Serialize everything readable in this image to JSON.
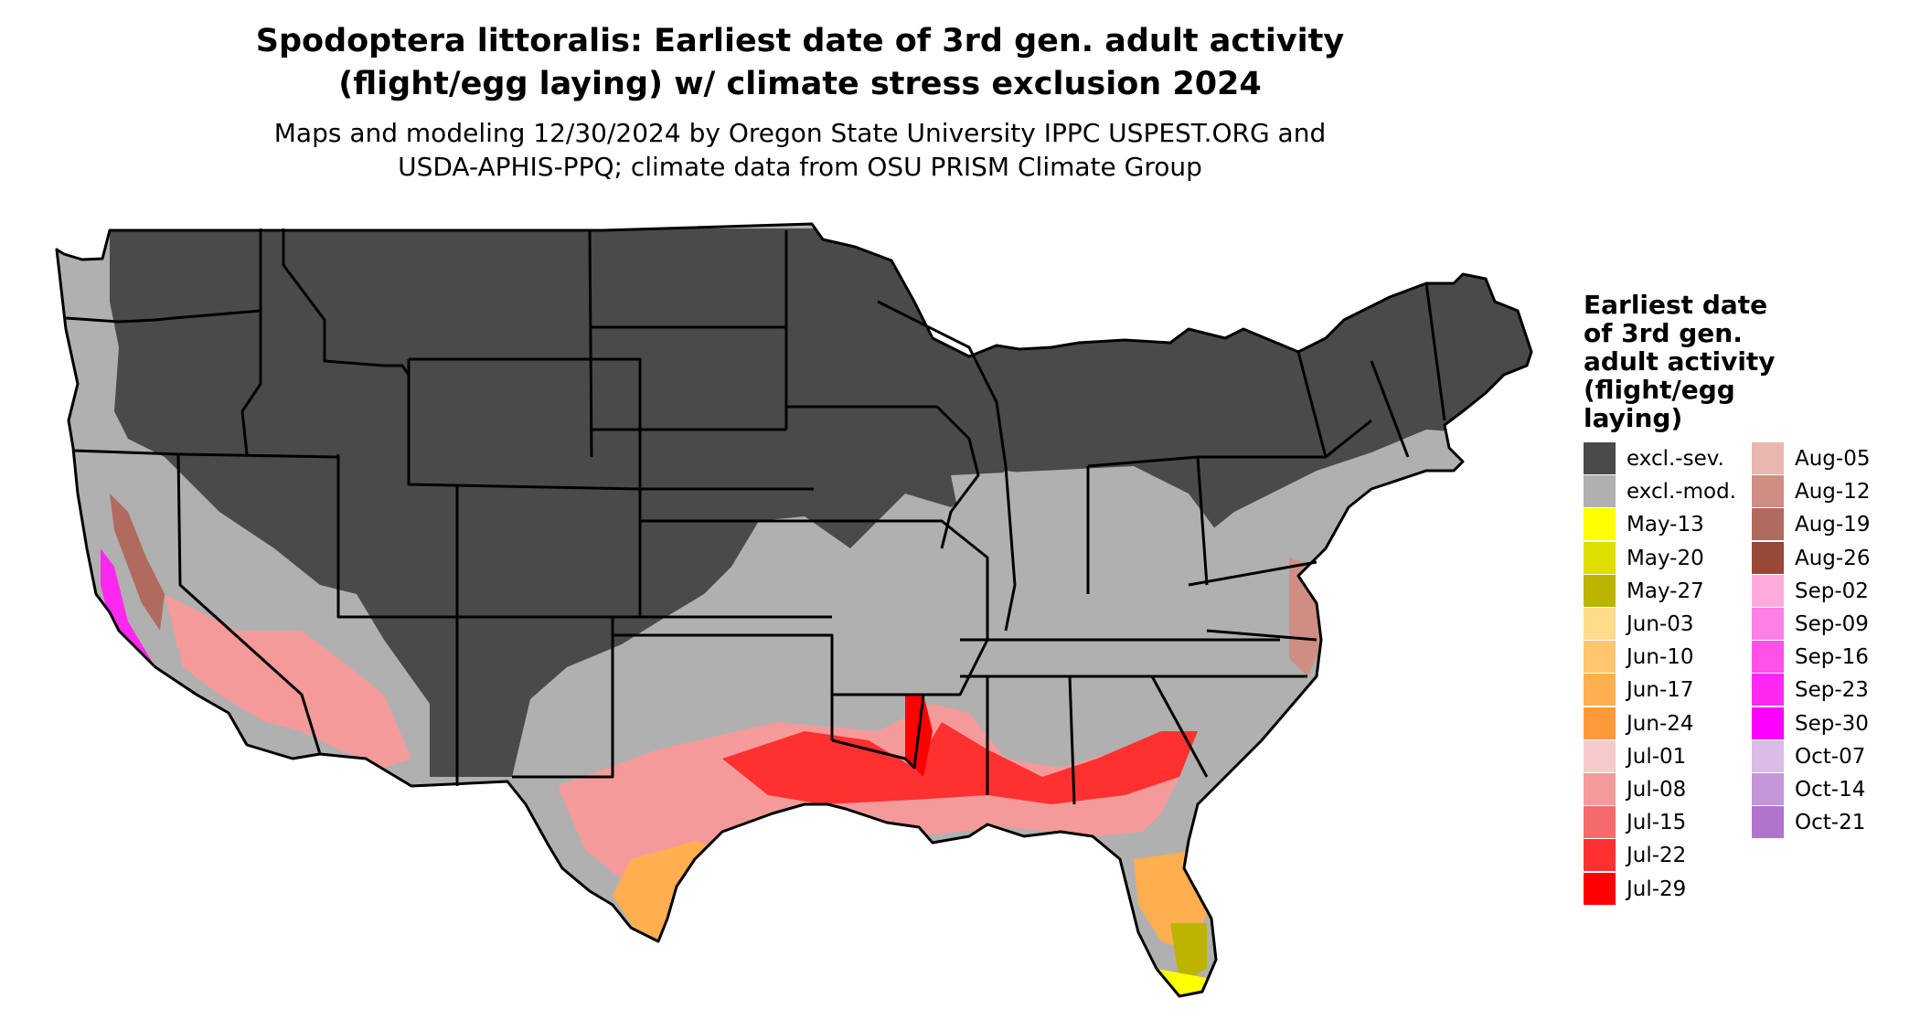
{
  "title_line1": "Spodoptera littoralis: Earliest date of 3rd gen. adult activity",
  "title_line2": "(flight/egg laying) w/ climate stress exclusion 2024",
  "subtitle_line1": "Maps and modeling 12/30/2024 by Oregon State University IPPC USPEST.ORG and",
  "subtitle_line2": "USDA-APHIS-PPQ; climate data from OSU PRISM Climate Group",
  "legend": {
    "title_lines": [
      "Earliest date",
      "of 3rd gen.",
      "adult activity",
      "(flight/egg",
      "laying)"
    ],
    "items": [
      {
        "label": "excl.-sev.",
        "color": "#4a4a4a"
      },
      {
        "label": "excl.-mod.",
        "color": "#b0b0b0"
      },
      {
        "label": "May-13",
        "color": "#ffff00"
      },
      {
        "label": "May-20",
        "color": "#dede00"
      },
      {
        "label": "May-27",
        "color": "#bcb400"
      },
      {
        "label": "Jun-03",
        "color": "#ffdc8c"
      },
      {
        "label": "Jun-10",
        "color": "#ffc66e"
      },
      {
        "label": "Jun-17",
        "color": "#ffae50"
      },
      {
        "label": "Jun-24",
        "color": "#ff9a3a"
      },
      {
        "label": "Jul-01",
        "color": "#f7caca"
      },
      {
        "label": "Jul-08",
        "color": "#f59a9a"
      },
      {
        "label": "Jul-15",
        "color": "#f56b6b"
      },
      {
        "label": "Jul-22",
        "color": "#ff3030"
      },
      {
        "label": "Jul-29",
        "color": "#ff0000"
      },
      {
        "label": "Aug-05",
        "color": "#e8b8b0"
      },
      {
        "label": "Aug-12",
        "color": "#cf8e84"
      },
      {
        "label": "Aug-19",
        "color": "#b06a5e"
      },
      {
        "label": "Aug-26",
        "color": "#974836"
      },
      {
        "label": "Sep-02",
        "color": "#ffaadc"
      },
      {
        "label": "Sep-09",
        "color": "#ff80e4"
      },
      {
        "label": "Sep-16",
        "color": "#ff50e8"
      },
      {
        "label": "Sep-23",
        "color": "#ff28f0"
      },
      {
        "label": "Sep-30",
        "color": "#ff00ff"
      },
      {
        "label": "Oct-07",
        "color": "#dcbce6"
      },
      {
        "label": "Oct-14",
        "color": "#c496d8"
      },
      {
        "label": "Oct-21",
        "color": "#b074cc"
      }
    ]
  },
  "region_colors": {
    "severe_exclusion": "#4a4a4a",
    "moderate_exclusion": "#b0b0b0",
    "state_border": "#000000"
  }
}
